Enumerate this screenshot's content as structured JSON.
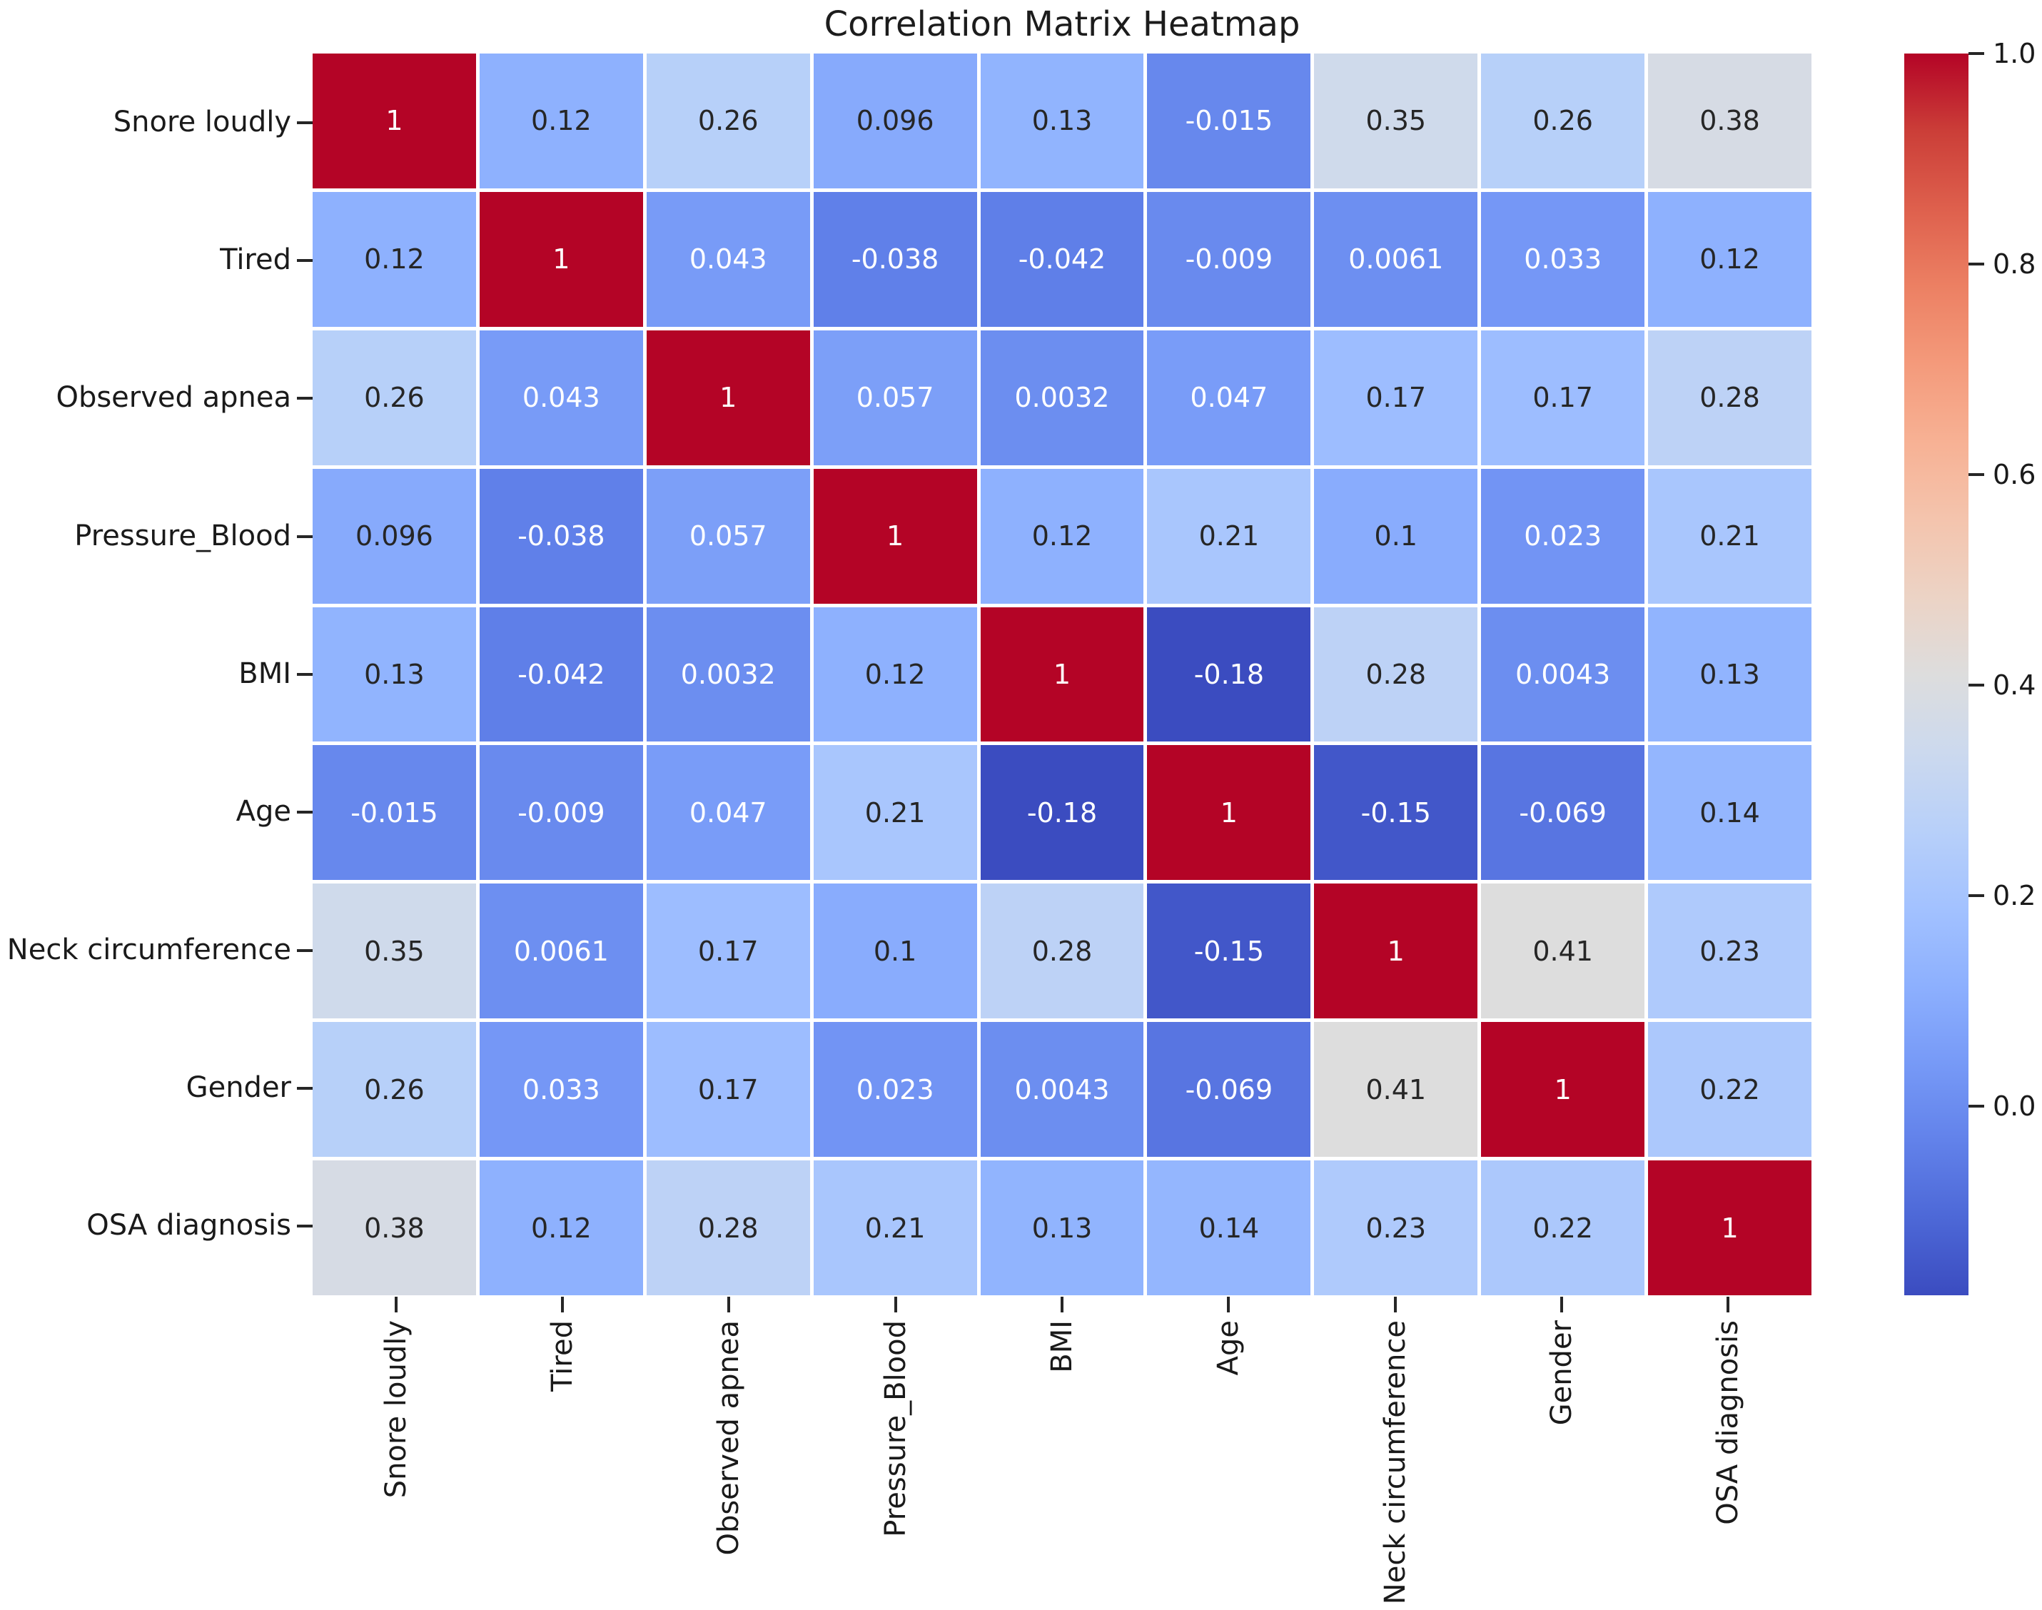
{
  "title": "Correlation Matrix Heatmap",
  "chart_data": {
    "type": "heatmap",
    "title": "Correlation Matrix Heatmap",
    "categories": [
      "Snore loudly",
      "Tired",
      "Observed apnea",
      "Pressure_Blood",
      "BMI",
      "Age",
      "Neck circumference",
      "Gender",
      "OSA diagnosis"
    ],
    "x_tick_labels": [
      "Snore loudly",
      "Tired",
      "Observed apnea",
      "Pressure_Blood",
      "BMI",
      "Age",
      "Neck circumference",
      "Gender",
      "OSA diagnosis"
    ],
    "y_tick_labels": [
      "Snore loudly",
      "Tired",
      "Observed apnea",
      "Pressure_Blood",
      "BMI",
      "Age",
      "Neck circumference",
      "Gender",
      "OSA diagnosis"
    ],
    "matrix": [
      [
        1,
        0.12,
        0.26,
        0.096,
        0.13,
        -0.015,
        0.35,
        0.26,
        0.38
      ],
      [
        0.12,
        1,
        0.043,
        -0.038,
        -0.042,
        -0.009,
        0.0061,
        0.033,
        0.12
      ],
      [
        0.26,
        0.043,
        1,
        0.057,
        0.0032,
        0.047,
        0.17,
        0.17,
        0.28
      ],
      [
        0.096,
        -0.038,
        0.057,
        1,
        0.12,
        0.21,
        0.1,
        0.023,
        0.21
      ],
      [
        0.13,
        -0.042,
        0.0032,
        0.12,
        1,
        -0.18,
        0.28,
        0.0043,
        0.13
      ],
      [
        -0.015,
        -0.009,
        0.047,
        0.21,
        -0.18,
        1,
        -0.15,
        -0.069,
        0.14
      ],
      [
        0.35,
        0.0061,
        0.17,
        0.1,
        0.28,
        -0.15,
        1,
        0.41,
        0.23
      ],
      [
        0.26,
        0.033,
        0.17,
        0.023,
        0.0043,
        -0.069,
        0.41,
        1,
        0.22
      ],
      [
        0.38,
        0.12,
        0.28,
        0.21,
        0.13,
        0.14,
        0.23,
        0.22,
        1
      ]
    ],
    "vmin": -0.18,
    "vmax": 1.0,
    "colormap": "coolwarm",
    "annotated": true,
    "grid_lines": "white",
    "colorbar": {
      "position": "right",
      "tick_labels": [
        "1.0",
        "0.8",
        "0.6",
        "0.4",
        "0.2",
        "0.0"
      ],
      "tick_values": [
        1.0,
        0.8,
        0.6,
        0.4,
        0.2,
        0.0
      ]
    }
  },
  "colors": {
    "background": "#ffffff",
    "annotation_dark": "#262626",
    "annotation_light": "#ffffff",
    "axis_text": "#1a1a1a",
    "tick_mark": "#262626",
    "cell_gap": "#ffffff",
    "cmap_anchors": [
      [
        59,
        76,
        192
      ],
      [
        77,
        104,
        215
      ],
      [
        98,
        130,
        234
      ],
      [
        119,
        154,
        247
      ],
      [
        141,
        176,
        254
      ],
      [
        163,
        194,
        255
      ],
      [
        184,
        208,
        249
      ],
      [
        204,
        217,
        238
      ],
      [
        221,
        221,
        221
      ],
      [
        236,
        211,
        197
      ],
      [
        244,
        196,
        173
      ],
      [
        247,
        177,
        148
      ],
      [
        244,
        154,
        123
      ],
      [
        236,
        128,
        99
      ],
      [
        222,
        96,
        77
      ],
      [
        203,
        62,
        56
      ],
      [
        180,
        4,
        38
      ]
    ]
  }
}
